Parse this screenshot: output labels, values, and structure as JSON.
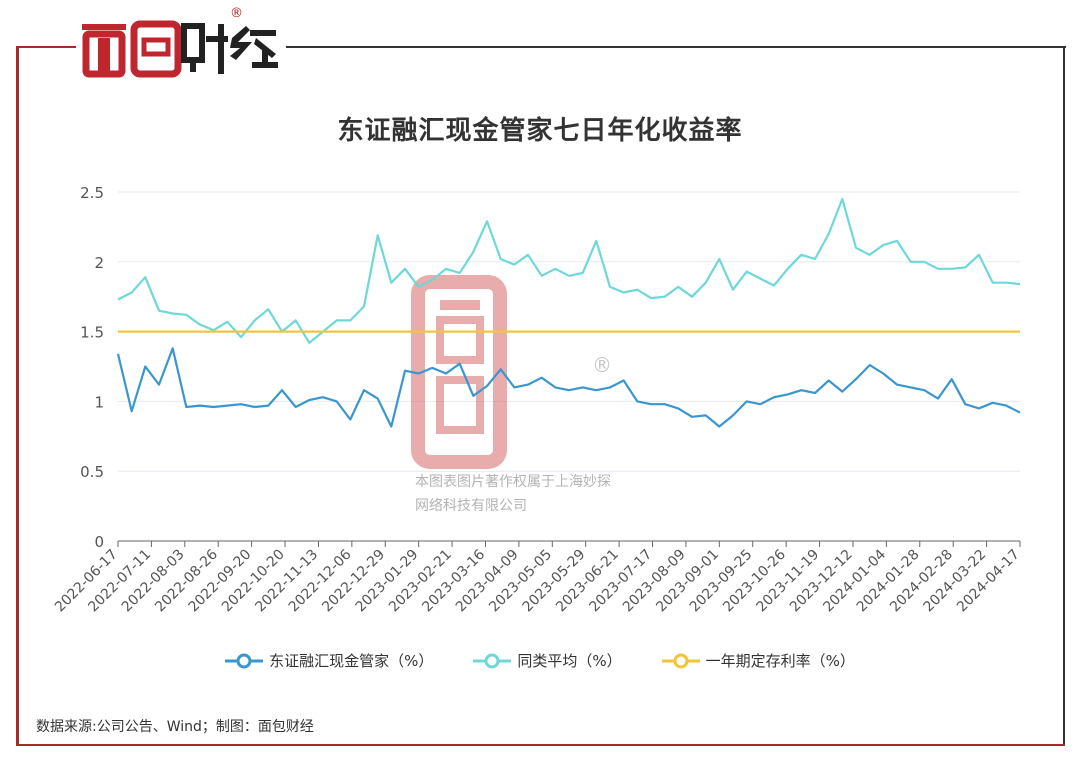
{
  "brand": {
    "logo_text": "面包财经",
    "registered_mark": "®",
    "watermark_lines": [
      "本图表图片著作权属于上海妙探",
      "网络科技有限公司"
    ]
  },
  "colors": {
    "frame_accent": "#a52a2a",
    "series_1": "#3a96cf",
    "series_2": "#6ed8d8",
    "series_3": "#f2c43a"
  },
  "footer": {
    "source": "数据来源:公司公告、Wind；制图：面包财经"
  },
  "chart_data": {
    "type": "line",
    "title": "东证融汇现金管家七日年化收益率",
    "xlabel": "",
    "ylabel": "",
    "ylim": [
      0,
      2.5
    ],
    "yticks": [
      "0",
      "0.5",
      "1",
      "1.5",
      "2",
      "2.5"
    ],
    "grid": true,
    "legend_position": "bottom",
    "x_ticks": [
      "2022-06-17",
      "2022-07-11",
      "2022-08-03",
      "2022-08-26",
      "2022-09-20",
      "2022-10-20",
      "2022-11-13",
      "2022-12-06",
      "2022-12-29",
      "2023-01-29",
      "2023-02-21",
      "2023-03-16",
      "2023-04-09",
      "2023-05-05",
      "2023-05-29",
      "2023-06-21",
      "2023-07-17",
      "2023-08-09",
      "2023-09-01",
      "2023-09-25",
      "2023-10-26",
      "2023-11-19",
      "2023-12-12",
      "2024-01-04",
      "2024-01-28",
      "2024-02-28",
      "2024-03-22",
      "2024-04-17"
    ],
    "series": [
      {
        "name": "东证融汇现金管家（%）",
        "color": "#3a96cf",
        "values": [
          1.34,
          0.93,
          1.25,
          1.12,
          1.38,
          0.96,
          0.97,
          0.96,
          0.97,
          0.98,
          0.96,
          0.97,
          1.08,
          0.96,
          1.01,
          1.03,
          1.0,
          0.87,
          1.08,
          1.02,
          0.82,
          1.22,
          1.2,
          1.24,
          1.2,
          1.27,
          1.04,
          1.11,
          1.23,
          1.1,
          1.12,
          1.17,
          1.1,
          1.08,
          1.1,
          1.08,
          1.1,
          1.15,
          1.0,
          0.98,
          0.98,
          0.95,
          0.89,
          0.9,
          0.82,
          0.9,
          1.0,
          0.98,
          1.03,
          1.05,
          1.08,
          1.06,
          1.15,
          1.07,
          1.16,
          1.26,
          1.2,
          1.12,
          1.1,
          1.08,
          1.02,
          1.16,
          0.98,
          0.95,
          0.99,
          0.97,
          0.92
        ]
      },
      {
        "name": "同类平均（%）",
        "color": "#6ed8d8",
        "values": [
          1.73,
          1.78,
          1.89,
          1.65,
          1.63,
          1.62,
          1.55,
          1.51,
          1.57,
          1.46,
          1.58,
          1.66,
          1.5,
          1.58,
          1.42,
          1.5,
          1.58,
          1.58,
          1.68,
          2.19,
          1.85,
          1.95,
          1.82,
          1.87,
          1.95,
          1.92,
          2.07,
          2.29,
          2.02,
          1.98,
          2.05,
          1.9,
          1.95,
          1.9,
          1.92,
          2.15,
          1.82,
          1.78,
          1.8,
          1.74,
          1.75,
          1.82,
          1.75,
          1.85,
          2.02,
          1.8,
          1.93,
          1.88,
          1.83,
          1.95,
          2.05,
          2.02,
          2.2,
          2.45,
          2.1,
          2.05,
          2.12,
          2.15,
          2.0,
          2.0,
          1.95,
          1.95,
          1.96,
          2.05,
          1.85,
          1.85,
          1.84
        ]
      },
      {
        "name": "一年期定存利率（%）",
        "color": "#f2c43a",
        "values": [
          1.5,
          1.5,
          1.5,
          1.5,
          1.5,
          1.5,
          1.5,
          1.5,
          1.5,
          1.5,
          1.5,
          1.5,
          1.5,
          1.5,
          1.5,
          1.5,
          1.5,
          1.5,
          1.5,
          1.5,
          1.5,
          1.5,
          1.5,
          1.5,
          1.5,
          1.5,
          1.5,
          1.5,
          1.5,
          1.5,
          1.5,
          1.5,
          1.5,
          1.5,
          1.5,
          1.5,
          1.5,
          1.5,
          1.5,
          1.5,
          1.5,
          1.5,
          1.5,
          1.5,
          1.5,
          1.5,
          1.5,
          1.5,
          1.5,
          1.5,
          1.5,
          1.5,
          1.5,
          1.5,
          1.5,
          1.5,
          1.5,
          1.5,
          1.5,
          1.5,
          1.5,
          1.5,
          1.5,
          1.5,
          1.5,
          1.5,
          1.5
        ]
      }
    ]
  }
}
